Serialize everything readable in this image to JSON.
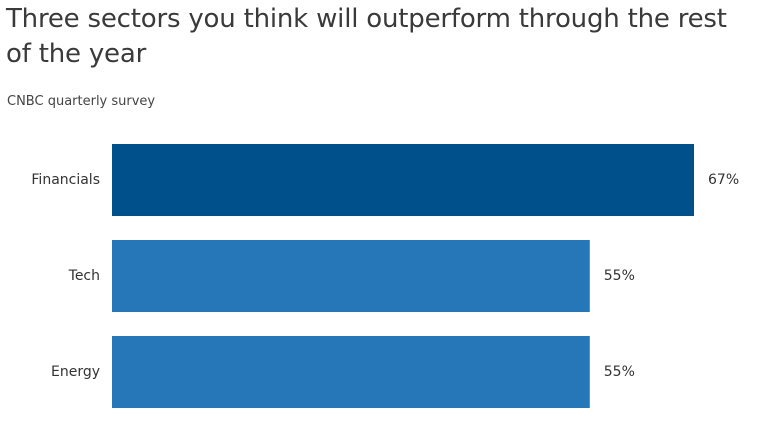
{
  "chart_data": {
    "type": "bar",
    "orientation": "horizontal",
    "title": "Three sectors you think will outperform through the rest of the year",
    "subtitle": "CNBC quarterly survey",
    "categories": [
      "Financials",
      "Tech",
      "Energy"
    ],
    "values": [
      67,
      55,
      55
    ],
    "value_labels": [
      "67%",
      "55%",
      "55%"
    ],
    "xlim": [
      0,
      67
    ],
    "colors": [
      "#00508c",
      "#2577b8",
      "#2577b8"
    ],
    "grid": false
  }
}
